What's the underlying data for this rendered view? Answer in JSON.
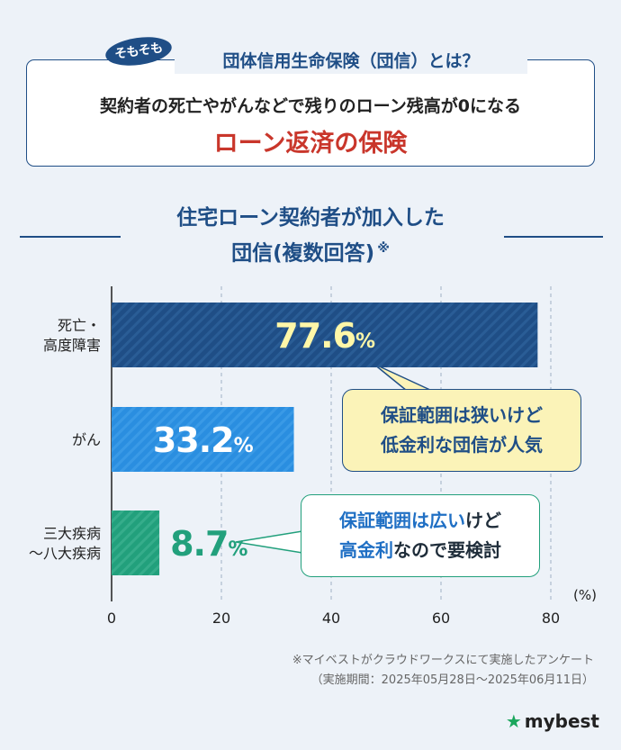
{
  "header": {
    "badge": "そもそも",
    "title": "団体信用生命保険（団信）とは？",
    "line1": "契約者の死亡やがんなどで残りのローン残高が0になる",
    "line2": "ローン返済の保険"
  },
  "chart_title": {
    "line1": "住宅ローン契約者が加入した",
    "line2": "団信(複数回答)",
    "mark": "※"
  },
  "chart_data": {
    "type": "bar",
    "orientation": "horizontal",
    "categories": [
      "死亡・高度障害",
      "がん",
      "三大疾病～八大疾病"
    ],
    "category_lines": [
      [
        "死亡・",
        "高度障害"
      ],
      [
        "がん"
      ],
      [
        "三大疾病",
        "～八大疾病"
      ]
    ],
    "values": [
      77.6,
      33.2,
      8.7
    ],
    "value_labels": [
      "77.6%",
      "33.2%",
      "8.7%"
    ],
    "unit": "(%)",
    "xlim": [
      0,
      80
    ],
    "xticks": [
      0,
      20,
      40,
      60,
      80
    ],
    "grid": true,
    "bar_colors": [
      "#1f4e86",
      "#2a8ee0",
      "#22a07c"
    ]
  },
  "callouts": {
    "narrow": {
      "line1": "保証範囲は狭いけど",
      "line2": "低金利な団信が人気"
    },
    "wide": {
      "line1_hl": "保証範囲は広い",
      "line1_rest": "けど",
      "line2_hl": "高金利",
      "line2_rest": "なので要検討"
    }
  },
  "notes": {
    "line1": "※マイベストがクラウドワークスにて実施したアンケート",
    "line2": "（実施期間：2025年05月28日～2025年06月11日）"
  },
  "logo": {
    "text": "mybest",
    "icon": "star-icon"
  }
}
